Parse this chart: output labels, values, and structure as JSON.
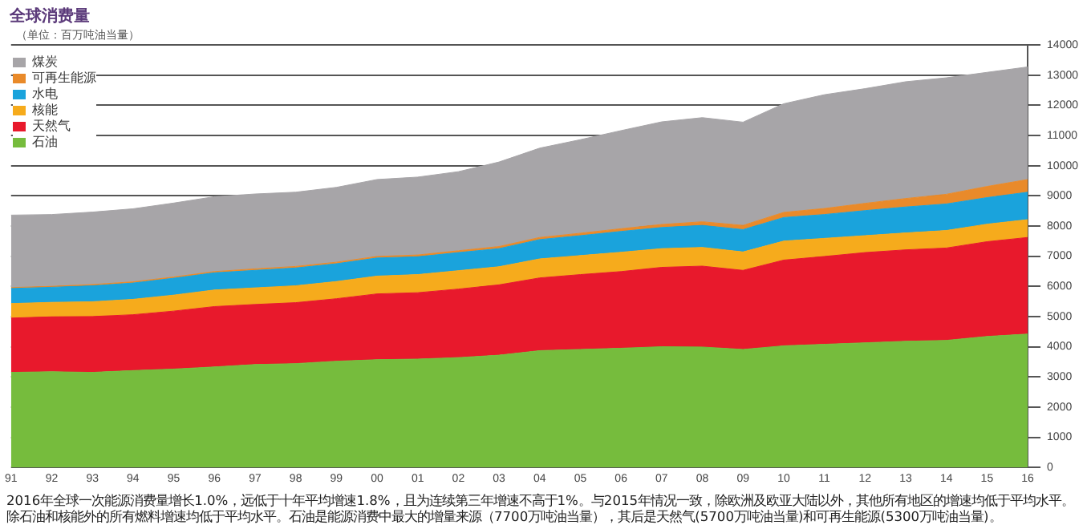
{
  "chart_data": {
    "type": "area",
    "title": "全球消费量",
    "subtitle": "（单位：百万吨油当量）",
    "categories": [
      "91",
      "92",
      "93",
      "94",
      "95",
      "96",
      "97",
      "98",
      "99",
      "00",
      "01",
      "02",
      "03",
      "04",
      "05",
      "06",
      "07",
      "08",
      "09",
      "10",
      "11",
      "12",
      "13",
      "14",
      "15",
      "16"
    ],
    "stacked": true,
    "series": [
      {
        "name": "石油",
        "color": "#76bc3d",
        "values": [
          3150,
          3170,
          3150,
          3210,
          3260,
          3330,
          3410,
          3440,
          3520,
          3570,
          3590,
          3640,
          3720,
          3870,
          3910,
          3950,
          4000,
          3990,
          3910,
          4030,
          4080,
          4130,
          4180,
          4210,
          4340,
          4420
        ]
      },
      {
        "name": "天然气",
        "color": "#e8192c",
        "values": [
          1800,
          1820,
          1850,
          1850,
          1920,
          2000,
          1990,
          2020,
          2070,
          2180,
          2200,
          2270,
          2330,
          2410,
          2480,
          2540,
          2630,
          2680,
          2620,
          2840,
          2910,
          2990,
          3030,
          3060,
          3140,
          3200
        ]
      },
      {
        "name": "核能",
        "color": "#f6ab1c",
        "values": [
          480,
          480,
          490,
          510,
          530,
          550,
          550,
          560,
          570,
          590,
          600,
          610,
          600,
          630,
          630,
          640,
          620,
          620,
          610,
          630,
          600,
          560,
          560,
          580,
          580,
          590
        ]
      },
      {
        "name": "水电",
        "color": "#1aa3dc",
        "values": [
          500,
          500,
          530,
          540,
          560,
          570,
          580,
          590,
          590,
          600,
          590,
          600,
          600,
          640,
          660,
          690,
          700,
          730,
          740,
          780,
          790,
          830,
          860,
          880,
          880,
          910
        ]
      },
      {
        "name": "可再生能源",
        "color": "#e98a2a",
        "values": [
          30,
          30,
          40,
          40,
          40,
          40,
          50,
          50,
          50,
          50,
          60,
          60,
          70,
          70,
          80,
          90,
          100,
          120,
          140,
          170,
          200,
          240,
          280,
          320,
          370,
          420
        ]
      },
      {
        "name": "煤炭",
        "color": "#a7a5a8",
        "values": [
          2400,
          2380,
          2400,
          2420,
          2450,
          2480,
          2480,
          2460,
          2480,
          2550,
          2580,
          2620,
          2800,
          2960,
          3100,
          3250,
          3400,
          3450,
          3420,
          3600,
          3770,
          3800,
          3870,
          3860,
          3780,
          3730
        ]
      }
    ],
    "ylim": [
      0,
      14000
    ],
    "yticks": [
      0,
      1000,
      2000,
      3000,
      4000,
      5000,
      6000,
      7000,
      8000,
      9000,
      10000,
      11000,
      12000,
      13000,
      14000
    ],
    "grid": "y",
    "legend": "top left",
    "annotations": [
      "2016年全球一次能源消费量增长1.0%，远低于十年平均增速1.8%，且为连续第三年增速不高于1%。与2015年情况一致，除欧洲及欧亚大陆以外，其他所有地区的增速均低于平均水平。除石油和核能外的所有燃料增速均低于平均水平。石油是能源消费中最大的增量来源（7700万吨油当量），其后是天然气(5700万吨油当量)和可再生能源(5300万吨油当量)。"
    ]
  }
}
